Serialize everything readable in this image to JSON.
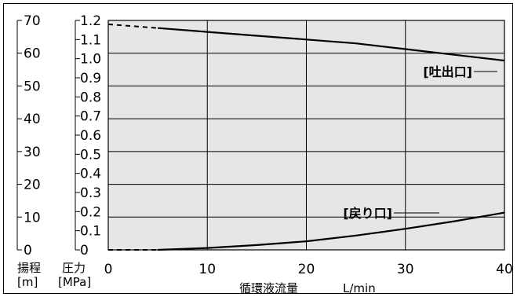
{
  "chart_data": {
    "type": "line",
    "xlabel": "循環液流量",
    "xunit": "L/min",
    "xlim": [
      0,
      40
    ],
    "x_ticks": [
      "0",
      "10",
      "20",
      "30",
      "40"
    ],
    "y_pressure": {
      "label": "圧力",
      "unit": "[MPa]",
      "lim": [
        0,
        1.2
      ],
      "ticks": [
        "0",
        "0.1",
        "0.2",
        "0.3",
        "0.4",
        "0.5",
        "0.6",
        "0.7",
        "0.8",
        "0.9",
        "1.0",
        "1.1",
        "1.2"
      ]
    },
    "y_head": {
      "label": "揚程",
      "unit": "[m]",
      "lim": [
        0,
        70
      ],
      "ticks": [
        "0",
        "10",
        "20",
        "30",
        "40",
        "50",
        "60",
        "70"
      ]
    },
    "grid": true,
    "plot_background": "#e6e6e6",
    "line_color": "#000000",
    "series": [
      {
        "name": "[吐出口]",
        "x": [
          0,
          5,
          10,
          15,
          20,
          25,
          30,
          35,
          40
        ],
        "values": [
          1.18,
          1.16,
          1.14,
          1.12,
          1.1,
          1.08,
          1.05,
          1.02,
          0.99
        ],
        "dashed_until_x": 5
      },
      {
        "name": "[戻り口]",
        "x": [
          0,
          5,
          10,
          15,
          20,
          25,
          30,
          35,
          40
        ],
        "values": [
          0.0,
          0.0,
          0.01,
          0.025,
          0.045,
          0.075,
          0.11,
          0.15,
          0.195
        ],
        "dashed_until_x": 5
      }
    ]
  }
}
